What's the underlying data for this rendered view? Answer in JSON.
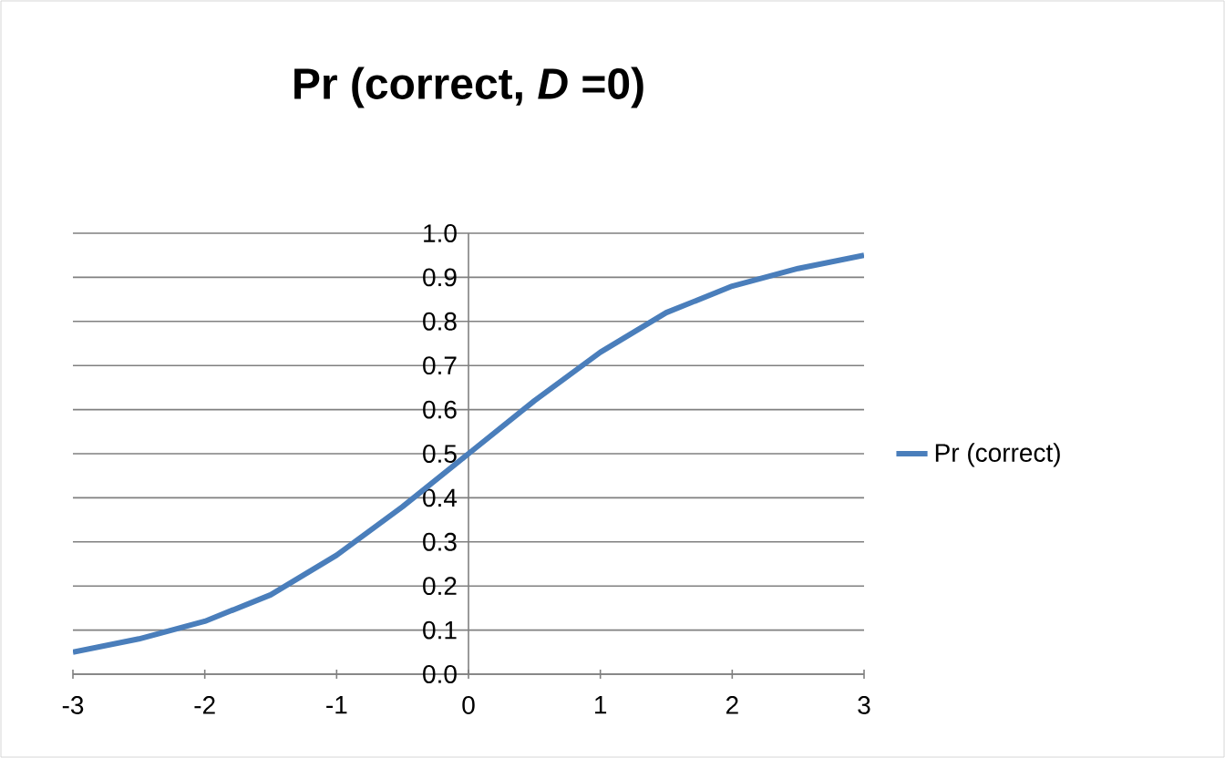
{
  "chart_data": {
    "type": "line",
    "title": "Pr (correct, *D* =0)",
    "x": [
      -3,
      -2.5,
      -2,
      -1.5,
      -1,
      -0.5,
      0,
      0.5,
      1,
      1.5,
      2,
      2.5,
      3
    ],
    "series": [
      {
        "name": "Pr (correct)",
        "color": "#4a7ebb",
        "values": [
          0.05,
          0.08,
          0.12,
          0.18,
          0.27,
          0.38,
          0.5,
          0.62,
          0.73,
          0.82,
          0.88,
          0.92,
          0.95
        ]
      }
    ],
    "xlim": [
      -3,
      3
    ],
    "xticks": [
      -3,
      -2,
      -1,
      0,
      1,
      2,
      3
    ],
    "ylim": [
      0,
      1
    ],
    "yticks": [
      "0.0",
      0.1,
      0.2,
      0.3,
      0.4,
      0.5,
      0.6,
      0.7,
      0.8,
      0.9,
      "1.0"
    ],
    "grid": "y",
    "legend": "right",
    "marker": "none",
    "line_style": "solid"
  }
}
